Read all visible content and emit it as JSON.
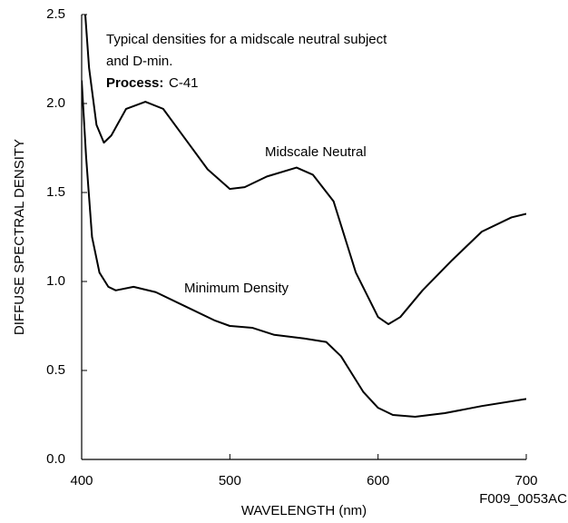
{
  "chart_data": {
    "type": "line",
    "annotation": [
      "Typical densities for a midscale neutral subject",
      "and D-min."
    ],
    "process_label": "Process:",
    "process_value": "C-41",
    "xlabel": "WAVELENGTH (nm)",
    "ylabel": "DIFFUSE SPECTRAL DENSITY",
    "figure_code": "F009_0053AC",
    "xlim": [
      400,
      700
    ],
    "xticks": [
      400,
      500,
      600,
      700
    ],
    "ylim": [
      0,
      2.5
    ],
    "yticks": [
      {
        "value": 0,
        "label": "0.0"
      },
      {
        "value": 0.5,
        "label": "0.5"
      },
      {
        "value": 1,
        "label": "1.0"
      },
      {
        "value": 1.5,
        "label": "1.5"
      },
      {
        "value": 2,
        "label": "2.0"
      },
      {
        "value": 2.5,
        "label": "2.5"
      }
    ],
    "series": [
      {
        "name": "Midscale Neutral",
        "color": "#000000",
        "x": [
          402,
          405,
          410,
          415,
          420,
          430,
          443,
          455,
          470,
          485,
          500,
          510,
          525,
          545,
          556,
          570,
          585,
          600,
          607,
          615,
          630,
          650,
          670,
          690,
          700
        ],
        "values": [
          2.55,
          2.2,
          1.88,
          1.78,
          1.82,
          1.97,
          2.01,
          1.97,
          1.8,
          1.63,
          1.52,
          1.53,
          1.59,
          1.64,
          1.6,
          1.45,
          1.05,
          0.8,
          0.76,
          0.8,
          0.95,
          1.12,
          1.28,
          1.36,
          1.38
        ]
      },
      {
        "name": "Minimum Density",
        "color": "#000000",
        "x": [
          400,
          403,
          407,
          412,
          418,
          423,
          435,
          450,
          470,
          490,
          500,
          515,
          530,
          550,
          565,
          575,
          590,
          600,
          610,
          625,
          645,
          670,
          700
        ],
        "values": [
          2.13,
          1.7,
          1.25,
          1.05,
          0.97,
          0.95,
          0.97,
          0.94,
          0.86,
          0.78,
          0.75,
          0.74,
          0.7,
          0.68,
          0.66,
          0.58,
          0.38,
          0.29,
          0.25,
          0.24,
          0.26,
          0.3,
          0.34
        ]
      }
    ]
  }
}
